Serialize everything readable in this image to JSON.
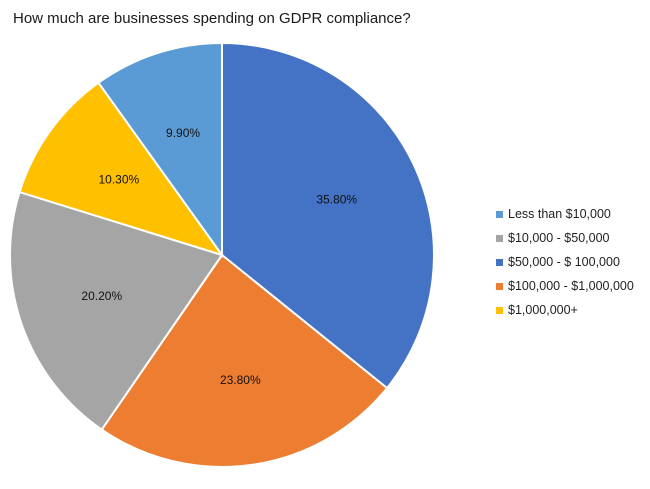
{
  "chart_data": {
    "type": "pie",
    "title": "How much are businesses spending on GDPR compliance?",
    "legend_position": "right",
    "slices": [
      {
        "label": "$50,000 - $ 100,000",
        "value": 35.8,
        "value_label": "35.80%",
        "color": "#4472C4"
      },
      {
        "label": "$100,000 - $1,000,000",
        "value": 23.8,
        "value_label": "23.80%",
        "color": "#ED7D31"
      },
      {
        "label": "$10,000 - $50,000",
        "value": 20.2,
        "value_label": "20.20%",
        "color": "#A5A5A5"
      },
      {
        "label": "$1,000,000+",
        "value": 10.3,
        "value_label": "10.30%",
        "color": "#FFC000"
      },
      {
        "label": "Less than $10,000",
        "value": 9.9,
        "value_label": "9.90%",
        "color": "#5B9BD5"
      }
    ],
    "legend_order": [
      "Less than $10,000",
      "$10,000 - $50,000",
      "$50,000 - $ 100,000",
      "$100,000 - $1,000,000",
      "$1,000,000+"
    ]
  }
}
